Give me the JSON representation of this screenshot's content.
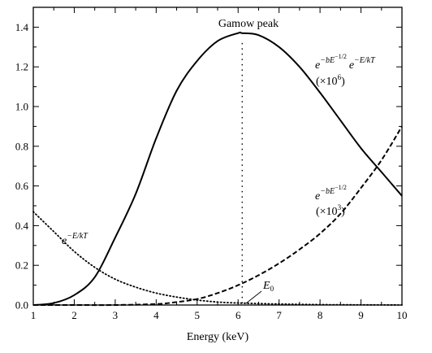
{
  "chart_data": {
    "type": "line",
    "xlabel": "Energy (keV)",
    "ylabel": "",
    "xlim": [
      1,
      10
    ],
    "ylim": [
      0,
      1.5
    ],
    "x_ticks": [
      1,
      2,
      3,
      4,
      5,
      6,
      7,
      8,
      9,
      10
    ],
    "y_ticks": [
      0.0,
      0.2,
      0.4,
      0.6,
      0.8,
      1.0,
      1.2,
      1.4
    ],
    "x_tick_labels": [
      "1",
      "2",
      "3",
      "4",
      "5",
      "6",
      "7",
      "8",
      "9",
      "10"
    ],
    "y_tick_labels": [
      "0.0",
      "0.2",
      "0.4",
      "0.6",
      "0.8",
      "1.0",
      "1.2",
      "1.4"
    ],
    "grid": false,
    "series": [
      {
        "style": "solid",
        "x": [
          1.0,
          1.5,
          2.0,
          2.5,
          3.0,
          3.5,
          4.0,
          4.5,
          5.0,
          5.5,
          6.0,
          6.1,
          6.5,
          7.0,
          7.5,
          8.0,
          8.5,
          9.0,
          9.5,
          10.0
        ],
        "y": [
          0.0,
          0.01,
          0.05,
          0.14,
          0.34,
          0.56,
          0.84,
          1.08,
          1.23,
          1.33,
          1.37,
          1.37,
          1.36,
          1.3,
          1.2,
          1.07,
          0.93,
          0.79,
          0.67,
          0.55
        ]
      },
      {
        "style": "dashed",
        "x": [
          1.0,
          2.0,
          3.0,
          4.0,
          4.5,
          5.0,
          5.5,
          6.0,
          6.5,
          7.0,
          7.5,
          8.0,
          8.5,
          9.0,
          9.5,
          10.0
        ],
        "y": [
          0.0,
          0.0,
          0.0,
          0.005,
          0.015,
          0.03,
          0.06,
          0.1,
          0.15,
          0.21,
          0.28,
          0.36,
          0.46,
          0.59,
          0.73,
          0.9
        ]
      },
      {
        "style": "dotted",
        "x": [
          1.0,
          1.5,
          2.0,
          2.5,
          3.0,
          3.5,
          4.0,
          4.5,
          5.0,
          5.5,
          6.0,
          7.0,
          8.0,
          9.0,
          10.0
        ],
        "y": [
          0.47,
          0.37,
          0.27,
          0.19,
          0.13,
          0.09,
          0.06,
          0.04,
          0.025,
          0.015,
          0.01,
          0.005,
          0.002,
          0.001,
          0.0
        ]
      }
    ],
    "annotations": {
      "gamow_peak": "Gamow peak",
      "e0": "E",
      "e0_sub": "0",
      "e0_x": 6.1,
      "solid_e": "e",
      "solid_exp1": "−bE",
      "solid_exp1_sup": "−1/2",
      "solid_e2": "e",
      "solid_exp2": "−E/kT",
      "solid_scale": "(×10",
      "solid_scale_sup": "6",
      "solid_scale_end": ")",
      "dashed_e": "e",
      "dashed_exp": "−bE",
      "dashed_exp_sup": "−1/2",
      "dashed_scale": "(×10",
      "dashed_scale_sup": "3",
      "dashed_scale_end": ")",
      "dotted_e": "e",
      "dotted_exp": "−E/kT"
    }
  }
}
